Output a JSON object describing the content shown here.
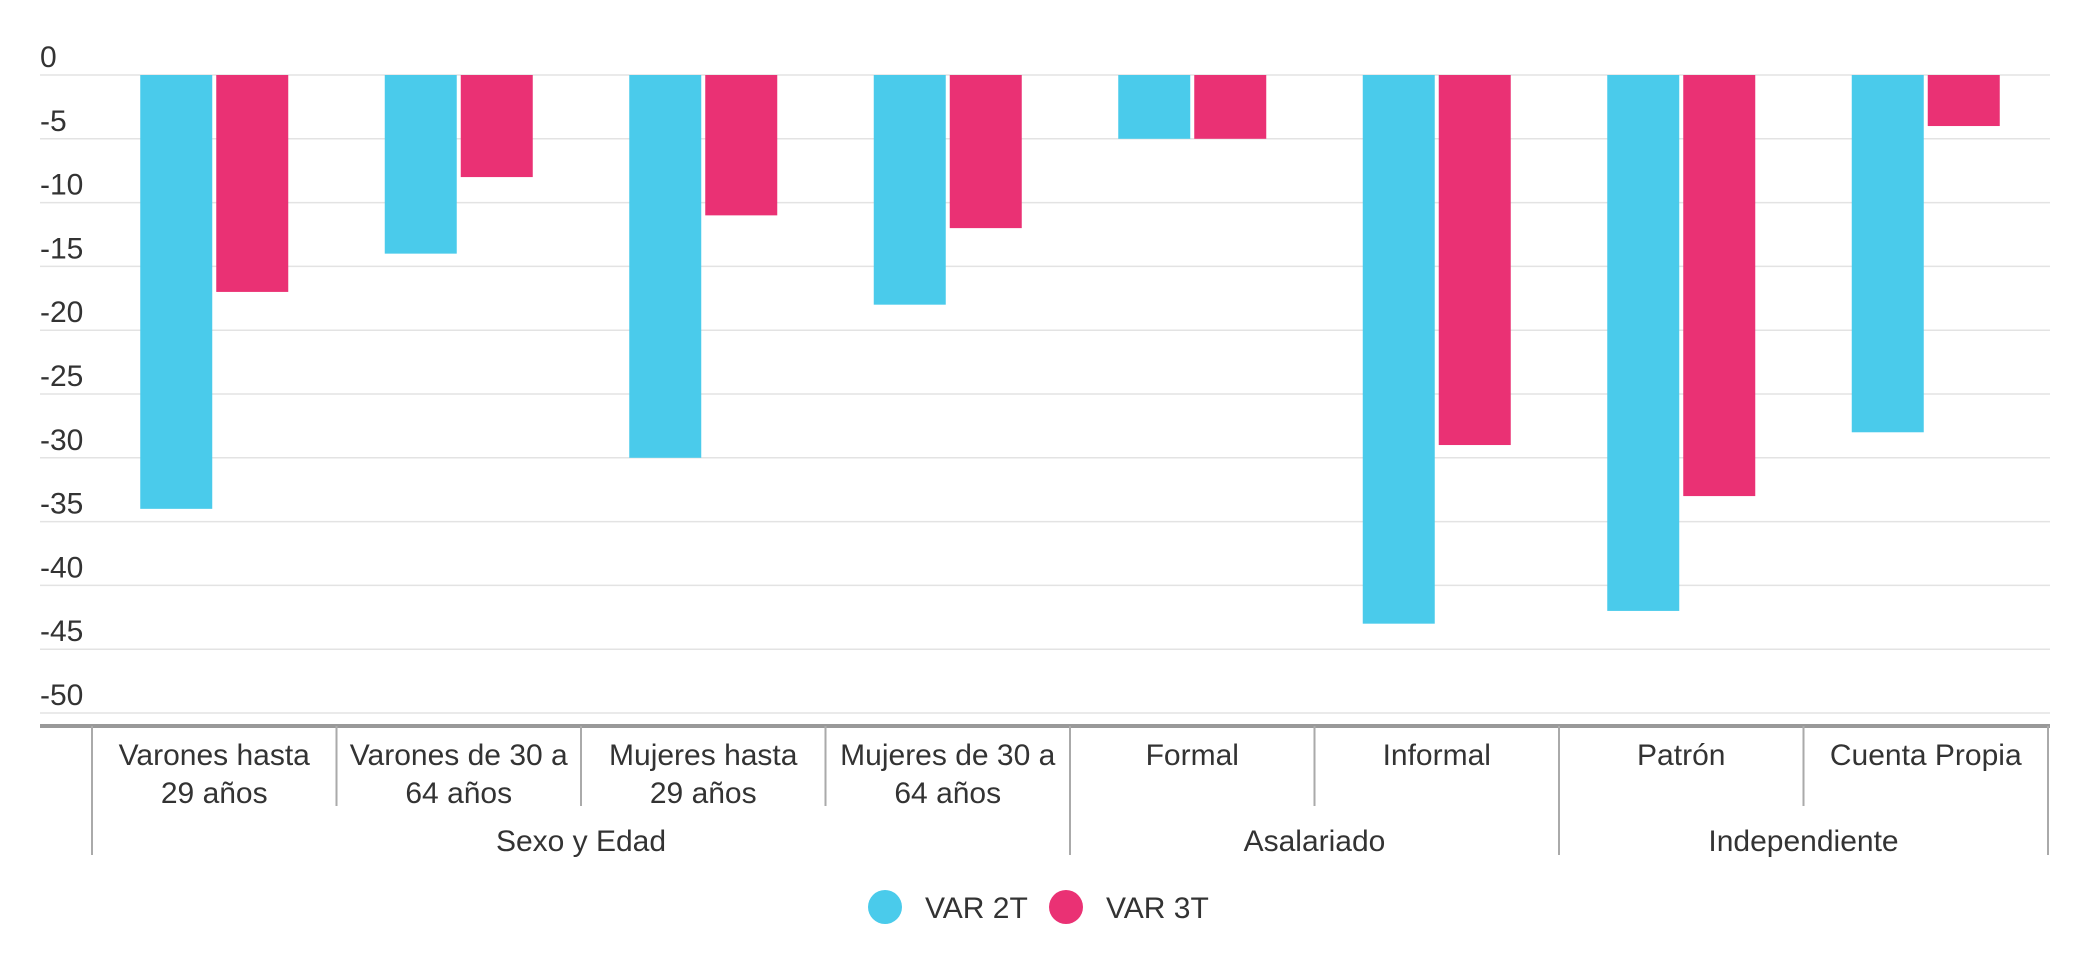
{
  "chart_data": {
    "type": "bar",
    "title": "",
    "xlabel": "",
    "ylabel": "",
    "ylim": [
      -50,
      0
    ],
    "yticks": [
      0,
      -5,
      -10,
      -15,
      -20,
      -25,
      -30,
      -35,
      -40,
      -45,
      -50
    ],
    "ytick_labels": [
      "0",
      "-5",
      "-10",
      "-15",
      "-20",
      "-25",
      "-30",
      "-35",
      "-40",
      "-45",
      "-50"
    ],
    "grid": true,
    "legend": "bottom",
    "categories": [
      [
        "Varones hasta",
        "29 años"
      ],
      [
        "Varones de 30 a",
        "64 años"
      ],
      [
        "Mujeres hasta",
        "29 años"
      ],
      [
        "Mujeres de 30 a",
        "64 años"
      ],
      [
        "Formal"
      ],
      [
        "Informal"
      ],
      [
        "Patrón"
      ],
      [
        "Cuenta Propia"
      ]
    ],
    "groups": [
      {
        "label": "Sexo y Edad",
        "span": 4
      },
      {
        "label": "Asalariado",
        "span": 2
      },
      {
        "label": "Independiente",
        "span": 2
      }
    ],
    "series": [
      {
        "name": "VAR 2T",
        "color": "#4acbeb",
        "values": [
          -34,
          -14,
          -30,
          -18,
          -5,
          -43,
          -42,
          -28
        ]
      },
      {
        "name": "VAR 3T",
        "color": "#ea3174",
        "values": [
          -17,
          -8,
          -11,
          -12,
          -5,
          -29,
          -33,
          -4
        ]
      }
    ]
  }
}
